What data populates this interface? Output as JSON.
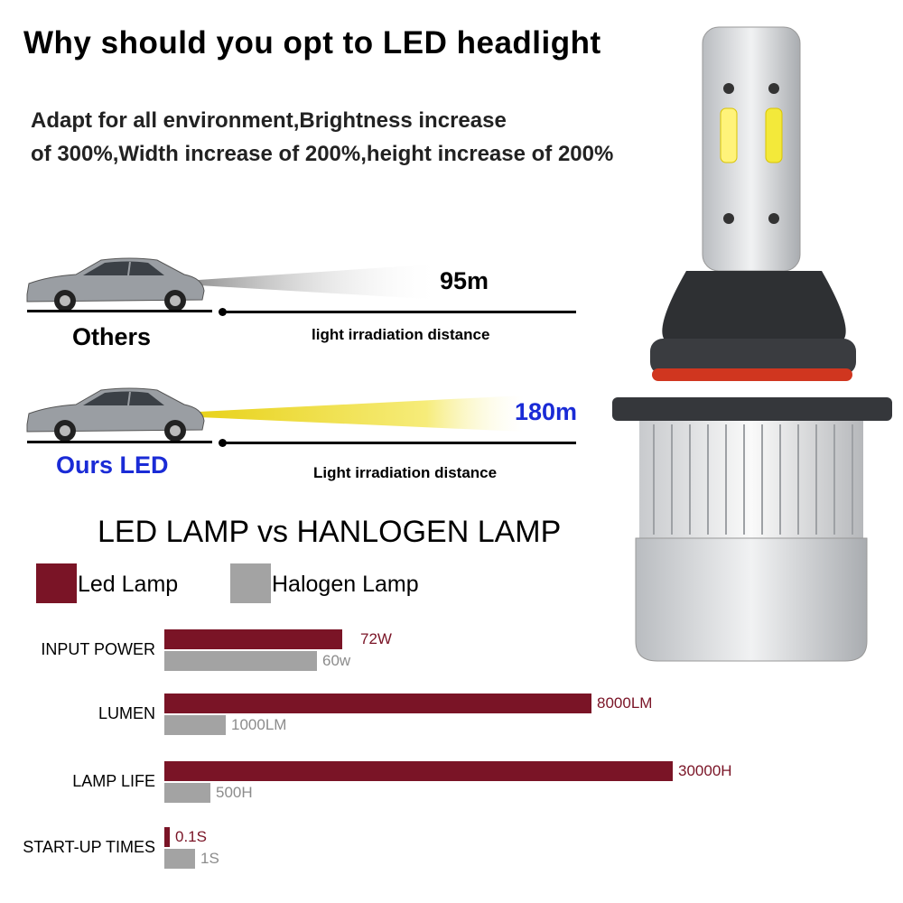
{
  "headline": "Why should you opt to LED headlight",
  "subtitle_lines": [
    "Adapt for all environment,Brightness increase",
    "of 300%,Width increase of 200%,height increase of 200%"
  ],
  "comparison": {
    "others": {
      "distance": "95m",
      "label": "Others",
      "caption": "light irradiation distance"
    },
    "ours": {
      "distance": "180m",
      "label": "Ours LED",
      "caption": "Light irradiation distance"
    }
  },
  "colors": {
    "led": "#7a1426",
    "halogen": "#a3a3a3",
    "ours_text": "#1a2bd6",
    "beam_yellow": "#f2e24a"
  },
  "chart_data": {
    "type": "bar",
    "title": "LED LAMP vs HANLOGEN LAMP",
    "legend": [
      "Led Lamp",
      "Halogen Lamp"
    ],
    "legend_placement": "top-left",
    "categories": [
      "INPUT POWER",
      "LUMEN",
      "LAMP LIFE",
      "START-UP TIMES"
    ],
    "series": [
      {
        "name": "Led Lamp",
        "labels": [
          "72W",
          "8000LM",
          "30000H",
          "0.1S"
        ]
      },
      {
        "name": "Halogen Lamp",
        "labels": [
          "60w",
          "1000LM",
          "500H",
          "1S"
        ]
      }
    ],
    "relative_bar_lengths": {
      "Led Lamp": [
        0.35,
        0.84,
        1.0,
        0.01
      ],
      "Halogen Lamp": [
        0.3,
        0.12,
        0.09,
        0.06
      ]
    },
    "grid": false
  }
}
